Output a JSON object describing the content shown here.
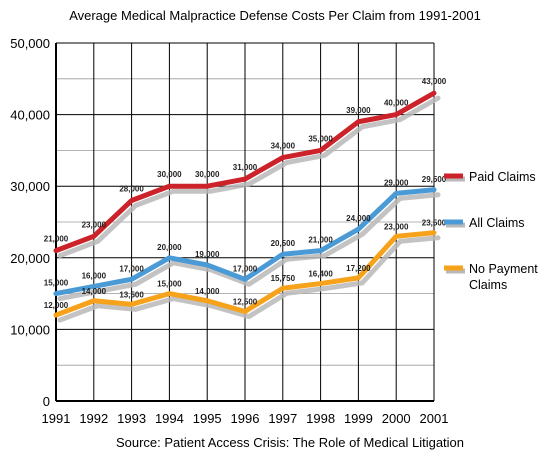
{
  "chart_data": {
    "type": "line",
    "title": "Average Medical Malpractice Defense Costs Per Claim from 1991-2001",
    "source": "Source: Patient Access Crisis: The Role of Medical Litigation",
    "x": [
      1991,
      1992,
      1993,
      1994,
      1995,
      1996,
      1997,
      1998,
      1999,
      2000,
      2001
    ],
    "ylim": [
      0,
      50000
    ],
    "yticks": [
      0,
      10000,
      20000,
      30000,
      40000,
      50000
    ],
    "ytick_labels": [
      "0",
      "10,000",
      "20,000",
      "30,000",
      "40,000",
      "50,000"
    ],
    "grid": true,
    "legend_position": "right",
    "series": [
      {
        "key": "paid",
        "name": "Paid Claims",
        "legend_lines": [
          "Paid Claims"
        ],
        "color": "#cc2229",
        "values": [
          21000,
          23000,
          28000,
          30000,
          30000,
          31000,
          34000,
          35000,
          39000,
          40000,
          43000
        ],
        "labels": [
          "21,000",
          "23,000",
          "28,000",
          "30,000",
          "30,000",
          "31,000",
          "34,000",
          "35,000",
          "39,000",
          "40,000",
          "43,000"
        ]
      },
      {
        "key": "all",
        "name": "All Claims",
        "legend_lines": [
          "All Claims"
        ],
        "color": "#4a9ad6",
        "values": [
          15000,
          16000,
          17000,
          20000,
          19000,
          17000,
          20500,
          21000,
          24000,
          29000,
          29500
        ],
        "labels": [
          "15,000",
          "16,000",
          "17,000",
          "20,000",
          "19,000",
          "17,000",
          "20,500",
          "21,000",
          "24,000",
          "29,000",
          "29,500"
        ]
      },
      {
        "key": "nopay",
        "name": "No Payment Claims",
        "legend_lines": [
          "No Payment",
          "Claims"
        ],
        "color": "#f7a21b",
        "values": [
          12000,
          14000,
          13500,
          15000,
          14000,
          12500,
          15750,
          16400,
          17200,
          23000,
          23500
        ],
        "labels": [
          "12,000",
          "14,000",
          "13,500",
          "15,000",
          "14,000",
          "12,500",
          "15,750",
          "16,400",
          "17,200",
          "23,000",
          "23,500"
        ]
      }
    ]
  }
}
